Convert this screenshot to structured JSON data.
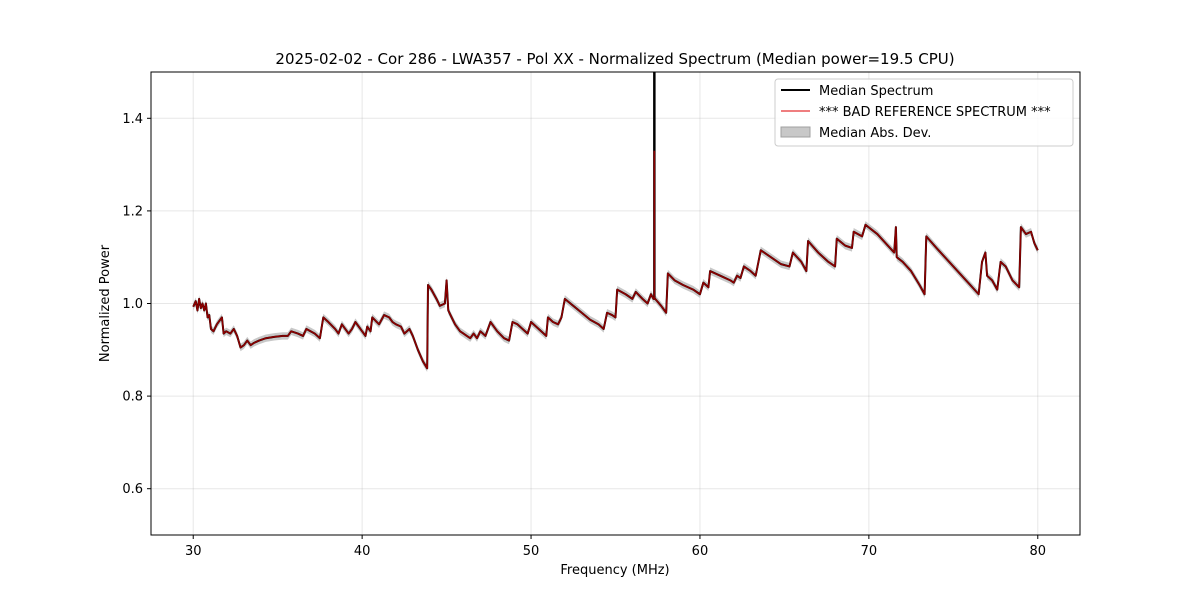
{
  "chart_data": {
    "type": "line",
    "title": "2025-02-02 - Cor 286 - LWA357 - Pol XX - Normalized Spectrum (Median power=19.5 CPU)",
    "xlabel": "Frequency (MHz)",
    "ylabel": "Normalized Power",
    "xlim": [
      27.5,
      82.5
    ],
    "ylim": [
      0.5,
      1.5
    ],
    "grid": true,
    "x_ticks": [
      30,
      40,
      50,
      60,
      70,
      80
    ],
    "x_tick_labels": [
      "30",
      "40",
      "50",
      "60",
      "70",
      "80"
    ],
    "y_ticks": [
      0.6,
      0.8,
      1.0,
      1.2,
      1.4
    ],
    "y_tick_labels": [
      "0.6",
      "0.8",
      "1.0",
      "1.2",
      "1.4"
    ],
    "legend": {
      "position": "top-right",
      "entries": [
        "Median Spectrum",
        "*** BAD REFERENCE SPECTRUM ***",
        "Median Abs. Dev."
      ]
    },
    "colors": {
      "median": "#000000",
      "reference": "#e31a1c",
      "mad_fill": "#c8c8c8",
      "overlap": "#8b0000"
    },
    "mad_width": 0.008,
    "spike": {
      "x": 57.3,
      "y_top": 1.5,
      "y_ref_top": 1.33
    },
    "series": [
      {
        "name": "Median Spectrum",
        "points": [
          [
            30.0,
            0.993
          ],
          [
            30.15,
            1.005
          ],
          [
            30.25,
            0.985
          ],
          [
            30.35,
            1.01
          ],
          [
            30.45,
            0.99
          ],
          [
            30.55,
            1.0
          ],
          [
            30.65,
            0.985
          ],
          [
            30.75,
            1.0
          ],
          [
            30.85,
            0.97
          ],
          [
            30.95,
            0.975
          ],
          [
            31.05,
            0.945
          ],
          [
            31.2,
            0.94
          ],
          [
            31.4,
            0.955
          ],
          [
            31.7,
            0.97
          ],
          [
            31.8,
            0.935
          ],
          [
            31.95,
            0.94
          ],
          [
            32.2,
            0.935
          ],
          [
            32.4,
            0.945
          ],
          [
            32.6,
            0.93
          ],
          [
            32.8,
            0.905
          ],
          [
            33.0,
            0.91
          ],
          [
            33.2,
            0.92
          ],
          [
            33.4,
            0.91
          ],
          [
            33.6,
            0.915
          ],
          [
            33.9,
            0.92
          ],
          [
            34.3,
            0.925
          ],
          [
            34.8,
            0.928
          ],
          [
            35.3,
            0.93
          ],
          [
            35.6,
            0.93
          ],
          [
            35.8,
            0.94
          ],
          [
            36.2,
            0.935
          ],
          [
            36.5,
            0.93
          ],
          [
            36.7,
            0.945
          ],
          [
            37.2,
            0.935
          ],
          [
            37.5,
            0.925
          ],
          [
            37.7,
            0.97
          ],
          [
            38.0,
            0.96
          ],
          [
            38.4,
            0.945
          ],
          [
            38.6,
            0.935
          ],
          [
            38.8,
            0.955
          ],
          [
            39.0,
            0.945
          ],
          [
            39.2,
            0.935
          ],
          [
            39.4,
            0.945
          ],
          [
            39.6,
            0.96
          ],
          [
            39.8,
            0.95
          ],
          [
            40.2,
            0.93
          ],
          [
            40.3,
            0.95
          ],
          [
            40.5,
            0.94
          ],
          [
            40.6,
            0.97
          ],
          [
            41.0,
            0.955
          ],
          [
            41.3,
            0.975
          ],
          [
            41.6,
            0.97
          ],
          [
            41.8,
            0.96
          ],
          [
            42.0,
            0.955
          ],
          [
            42.3,
            0.95
          ],
          [
            42.5,
            0.935
          ],
          [
            42.8,
            0.945
          ],
          [
            43.0,
            0.93
          ],
          [
            43.3,
            0.9
          ],
          [
            43.6,
            0.875
          ],
          [
            43.85,
            0.86
          ],
          [
            43.9,
            1.04
          ],
          [
            44.1,
            1.03
          ],
          [
            44.4,
            1.01
          ],
          [
            44.6,
            0.995
          ],
          [
            44.9,
            1.0
          ],
          [
            45.0,
            1.05
          ],
          [
            45.1,
            0.985
          ],
          [
            45.3,
            0.97
          ],
          [
            45.5,
            0.955
          ],
          [
            45.8,
            0.94
          ],
          [
            46.0,
            0.935
          ],
          [
            46.2,
            0.93
          ],
          [
            46.4,
            0.925
          ],
          [
            46.6,
            0.935
          ],
          [
            46.8,
            0.925
          ],
          [
            47.0,
            0.94
          ],
          [
            47.3,
            0.93
          ],
          [
            47.6,
            0.96
          ],
          [
            48.0,
            0.94
          ],
          [
            48.4,
            0.925
          ],
          [
            48.7,
            0.92
          ],
          [
            48.9,
            0.96
          ],
          [
            49.2,
            0.955
          ],
          [
            49.5,
            0.945
          ],
          [
            49.8,
            0.935
          ],
          [
            50.0,
            0.96
          ],
          [
            50.3,
            0.95
          ],
          [
            50.6,
            0.94
          ],
          [
            50.9,
            0.93
          ],
          [
            51.0,
            0.97
          ],
          [
            51.3,
            0.96
          ],
          [
            51.6,
            0.955
          ],
          [
            51.8,
            0.97
          ],
          [
            52.0,
            1.01
          ],
          [
            52.5,
            0.995
          ],
          [
            53.0,
            0.98
          ],
          [
            53.5,
            0.965
          ],
          [
            54.0,
            0.955
          ],
          [
            54.3,
            0.945
          ],
          [
            54.5,
            0.98
          ],
          [
            54.8,
            0.975
          ],
          [
            55.0,
            0.97
          ],
          [
            55.1,
            1.03
          ],
          [
            55.6,
            1.02
          ],
          [
            56.0,
            1.01
          ],
          [
            56.2,
            1.025
          ],
          [
            56.6,
            1.01
          ],
          [
            56.9,
            1.0
          ],
          [
            57.1,
            1.02
          ],
          [
            57.25,
            1.01
          ],
          [
            57.35,
            1.01
          ],
          [
            57.7,
            0.995
          ],
          [
            58.0,
            0.98
          ],
          [
            58.1,
            1.065
          ],
          [
            58.5,
            1.05
          ],
          [
            59.0,
            1.04
          ],
          [
            59.6,
            1.03
          ],
          [
            60.0,
            1.02
          ],
          [
            60.2,
            1.045
          ],
          [
            60.5,
            1.035
          ],
          [
            60.6,
            1.07
          ],
          [
            61.2,
            1.06
          ],
          [
            61.8,
            1.05
          ],
          [
            62.0,
            1.045
          ],
          [
            62.2,
            1.06
          ],
          [
            62.4,
            1.055
          ],
          [
            62.6,
            1.08
          ],
          [
            63.0,
            1.07
          ],
          [
            63.3,
            1.06
          ],
          [
            63.6,
            1.115
          ],
          [
            64.2,
            1.1
          ],
          [
            64.8,
            1.085
          ],
          [
            65.3,
            1.08
          ],
          [
            65.5,
            1.11
          ],
          [
            66.0,
            1.09
          ],
          [
            66.3,
            1.07
          ],
          [
            66.4,
            1.135
          ],
          [
            67.0,
            1.11
          ],
          [
            67.6,
            1.09
          ],
          [
            68.0,
            1.08
          ],
          [
            68.1,
            1.14
          ],
          [
            68.6,
            1.125
          ],
          [
            69.0,
            1.12
          ],
          [
            69.1,
            1.155
          ],
          [
            69.6,
            1.145
          ],
          [
            69.8,
            1.17
          ],
          [
            70.5,
            1.15
          ],
          [
            71.0,
            1.13
          ],
          [
            71.5,
            1.11
          ],
          [
            71.6,
            1.165
          ],
          [
            71.65,
            1.1
          ],
          [
            72.0,
            1.09
          ],
          [
            72.5,
            1.07
          ],
          [
            73.0,
            1.04
          ],
          [
            73.3,
            1.02
          ],
          [
            73.4,
            1.145
          ],
          [
            74.0,
            1.12
          ],
          [
            74.5,
            1.1
          ],
          [
            75.0,
            1.08
          ],
          [
            75.5,
            1.06
          ],
          [
            76.0,
            1.04
          ],
          [
            76.5,
            1.02
          ],
          [
            76.7,
            1.09
          ],
          [
            76.9,
            1.11
          ],
          [
            77.0,
            1.06
          ],
          [
            77.3,
            1.05
          ],
          [
            77.6,
            1.03
          ],
          [
            77.8,
            1.09
          ],
          [
            78.1,
            1.08
          ],
          [
            78.5,
            1.05
          ],
          [
            78.9,
            1.035
          ],
          [
            79.0,
            1.165
          ],
          [
            79.3,
            1.15
          ],
          [
            79.6,
            1.155
          ],
          [
            79.8,
            1.13
          ],
          [
            80.0,
            1.115
          ]
        ]
      }
    ]
  }
}
